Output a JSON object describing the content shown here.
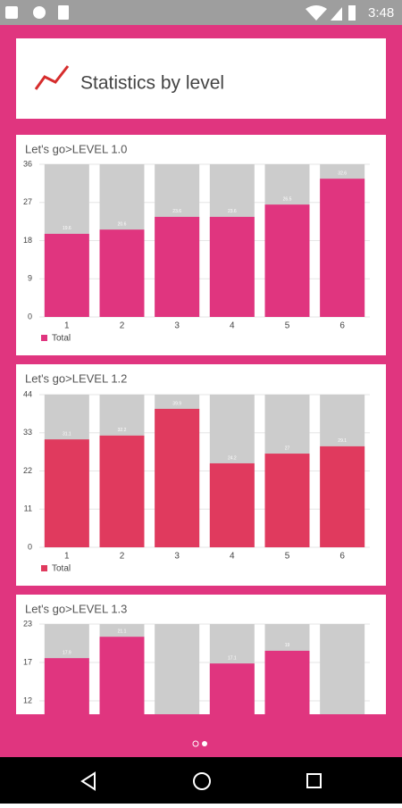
{
  "status_bar": {
    "time": "3:48"
  },
  "header": {
    "title": "Statistics by level"
  },
  "chart_data": [
    {
      "type": "bar",
      "title": "Let's go>LEVEL 1.0",
      "categories": [
        "1",
        "2",
        "3",
        "4",
        "5",
        "6"
      ],
      "series": [
        {
          "name": "Total",
          "color": "#e0357f",
          "values": [
            19.6,
            20.6,
            23.6,
            23.6,
            26.5,
            32.6
          ]
        }
      ],
      "ylim": [
        0,
        36
      ],
      "yticks": [
        0,
        9,
        18,
        27,
        36
      ],
      "grid": true
    },
    {
      "type": "bar",
      "title": "Let's go>LEVEL 1.2",
      "categories": [
        "1",
        "2",
        "3",
        "4",
        "5",
        "6"
      ],
      "series": [
        {
          "name": "Total",
          "color": "#e03a5e",
          "values": [
            31.1,
            32.2,
            39.9,
            24.2,
            27.0,
            29.1
          ]
        }
      ],
      "ylim": [
        0,
        44
      ],
      "yticks": [
        0,
        11,
        22,
        33,
        44
      ],
      "grid": true
    },
    {
      "type": "bar",
      "title": "Let's go>LEVEL 1.3",
      "color": "#e0357f",
      "values": [
        17.9,
        21.1,
        0,
        17.1,
        19.0,
        0
      ],
      "ylim": [
        0,
        23
      ],
      "yticks": [
        {
          "value": 11.5,
          "label": "12"
        },
        {
          "value": 17.25,
          "label": "17"
        },
        23
      ],
      "grid": true
    }
  ]
}
